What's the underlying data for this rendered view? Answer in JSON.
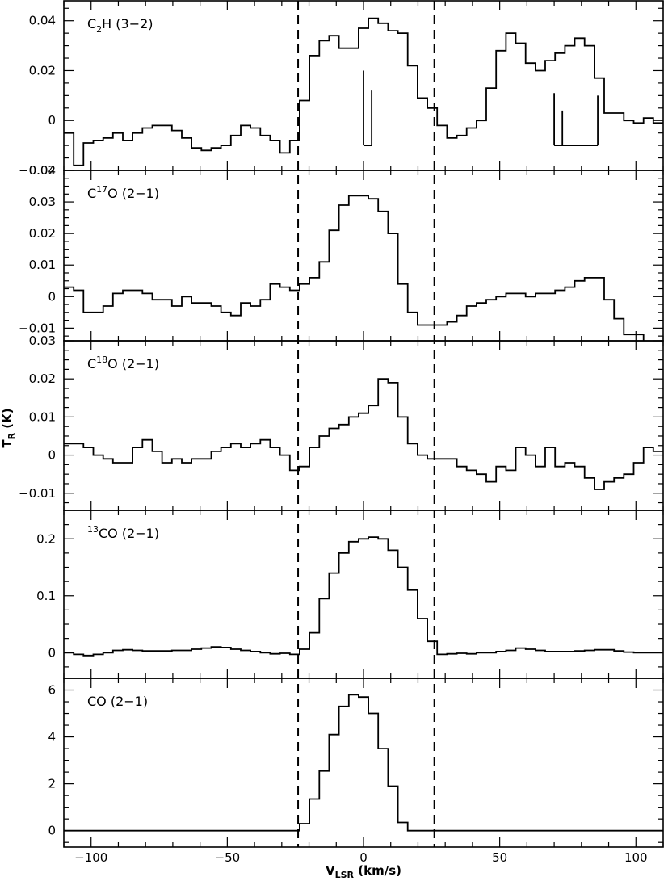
{
  "chart_data": {
    "type": "line",
    "shared_x": {
      "label_main": "V",
      "label_sub": "LSR",
      "label_rest": " (km/s)",
      "range": [
        -110,
        110
      ],
      "ticks": [
        -100,
        -50,
        0,
        50,
        100
      ],
      "tick_labels": [
        "−100",
        "−50",
        "0",
        "50",
        "100"
      ],
      "minor_step": 10
    },
    "y_axis_title": {
      "main": "T",
      "sub": "R",
      "rest": " (K)"
    },
    "dashed_lines_x": [
      -24,
      26
    ],
    "panels": [
      {
        "label": {
          "pre": "C",
          "sup": "",
          "sub": "2",
          "post": "H  (3−2)"
        },
        "ylim": [
          -0.02,
          0.048
        ],
        "yticks": [
          -0.02,
          0,
          0.02,
          0.04
        ],
        "ytick_labels": [
          "−0.02",
          "0",
          "0.02",
          "0.04"
        ],
        "minor_step": 0.005,
        "values": [
          -0.005,
          -0.018,
          -0.009,
          -0.008,
          -0.007,
          -0.005,
          -0.008,
          -0.005,
          -0.003,
          -0.002,
          -0.002,
          -0.004,
          -0.007,
          -0.011,
          -0.012,
          -0.011,
          -0.01,
          -0.006,
          -0.002,
          -0.003,
          -0.006,
          -0.008,
          -0.013,
          -0.008,
          0.008,
          0.026,
          0.032,
          0.034,
          0.029,
          0.029,
          0.037,
          0.041,
          0.039,
          0.036,
          0.035,
          0.022,
          0.009,
          0.005,
          -0.002,
          -0.007,
          -0.006,
          -0.003,
          0.0,
          0.013,
          0.028,
          0.035,
          0.031,
          0.023,
          0.02,
          0.024,
          0.027,
          0.03,
          0.033,
          0.03,
          0.017,
          0.003,
          0.003,
          0.0,
          -0.001,
          0.001,
          -0.001
        ]
      },
      {
        "label": {
          "pre": "C",
          "sup": "17",
          "sub": "",
          "post": "O  (2−1)"
        },
        "ylim": [
          -0.014,
          0.04
        ],
        "yticks": [
          -0.01,
          0,
          0.01,
          0.02,
          0.03,
          0.04
        ],
        "ytick_labels": [
          "−0.01",
          "0",
          "0.01",
          "0.02",
          "0.03",
          "0.04"
        ],
        "minor_step": 0.0025,
        "values": [
          0.003,
          0.002,
          -0.005,
          -0.005,
          -0.003,
          0.001,
          0.002,
          0.002,
          0.001,
          -0.001,
          -0.001,
          -0.003,
          0.0,
          -0.002,
          -0.002,
          -0.003,
          -0.005,
          -0.006,
          -0.002,
          -0.003,
          -0.001,
          0.004,
          0.003,
          0.002,
          0.004,
          0.006,
          0.011,
          0.021,
          0.029,
          0.032,
          0.032,
          0.031,
          0.027,
          0.02,
          0.004,
          -0.005,
          -0.009,
          -0.009,
          -0.009,
          -0.008,
          -0.006,
          -0.003,
          -0.002,
          -0.001,
          0.0,
          0.001,
          0.001,
          0.0,
          0.001,
          0.001,
          0.002,
          0.003,
          0.005,
          0.006,
          0.006,
          -0.001,
          -0.007,
          -0.012,
          -0.012,
          -0.015,
          -0.015
        ]
      },
      {
        "label": {
          "pre": "C",
          "sup": "18",
          "sub": "",
          "post": "O  (2−1)"
        },
        "ylim": [
          -0.0145,
          0.03
        ],
        "yticks": [
          -0.01,
          0,
          0.01,
          0.02,
          0.03
        ],
        "ytick_labels": [
          "−0.01",
          "0",
          "0.01",
          "0.02",
          "0.03"
        ],
        "minor_step": 0.0025,
        "values": [
          0.003,
          0.003,
          0.002,
          0.0,
          -0.001,
          -0.002,
          -0.002,
          0.002,
          0.004,
          0.001,
          -0.002,
          -0.001,
          -0.002,
          -0.001,
          -0.001,
          0.001,
          0.002,
          0.003,
          0.002,
          0.003,
          0.004,
          0.002,
          0.0,
          -0.004,
          -0.003,
          0.002,
          0.005,
          0.007,
          0.008,
          0.01,
          0.011,
          0.013,
          0.02,
          0.019,
          0.01,
          0.003,
          0.0,
          -0.001,
          -0.001,
          -0.001,
          -0.003,
          -0.004,
          -0.005,
          -0.007,
          -0.003,
          -0.004,
          0.002,
          0.0,
          -0.003,
          0.002,
          -0.003,
          -0.002,
          -0.003,
          -0.006,
          -0.009,
          -0.007,
          -0.006,
          -0.005,
          -0.002,
          0.002,
          0.001
        ]
      },
      {
        "label": {
          "pre": "",
          "sup": "13",
          "sub": "",
          "post": "CO  (2−1)"
        },
        "ylim": [
          -0.045,
          0.25
        ],
        "yticks": [
          0,
          0.1,
          0.2
        ],
        "ytick_labels": [
          "0",
          "0.1",
          "0.2"
        ],
        "minor_step": 0.025,
        "values": [
          0.0,
          -0.003,
          -0.005,
          -0.003,
          0.0,
          0.004,
          0.005,
          0.004,
          0.003,
          0.003,
          0.003,
          0.004,
          0.004,
          0.006,
          0.008,
          0.01,
          0.009,
          0.006,
          0.004,
          0.002,
          0.0,
          -0.002,
          -0.001,
          -0.003,
          0.006,
          0.035,
          0.095,
          0.14,
          0.175,
          0.195,
          0.2,
          0.203,
          0.2,
          0.18,
          0.15,
          0.11,
          0.06,
          0.02,
          -0.003,
          -0.002,
          -0.001,
          -0.002,
          0.0,
          0.0,
          0.002,
          0.004,
          0.008,
          0.006,
          0.004,
          0.002,
          0.002,
          0.002,
          0.003,
          0.004,
          0.005,
          0.005,
          0.003,
          0.001,
          0.0,
          0.0,
          0.0
        ]
      },
      {
        "label": {
          "pre": "",
          "sup": "",
          "sub": "",
          "post": "CO  (2−1)"
        },
        "ylim": [
          -0.7,
          6.5
        ],
        "yticks": [
          0,
          2,
          4,
          6
        ],
        "ytick_labels": [
          "0",
          "2",
          "4",
          "6"
        ],
        "minor_step": 0.5,
        "values": [
          0,
          0,
          0,
          0,
          0,
          0,
          0,
          0,
          0,
          0,
          0,
          0,
          0,
          0,
          0,
          0,
          0,
          0,
          0,
          0,
          0,
          0,
          0,
          0,
          0.3,
          1.35,
          2.55,
          4.1,
          5.3,
          5.8,
          5.7,
          5.0,
          3.5,
          1.9,
          0.35,
          0,
          0,
          0,
          0,
          0,
          0,
          0,
          0,
          0,
          0,
          0,
          0,
          0,
          0,
          0,
          0,
          0,
          0,
          0,
          0,
          0,
          0,
          0,
          0,
          0,
          0
        ]
      }
    ],
    "markers": {
      "panel": 0,
      "baseline_y": -0.01,
      "groups": [
        {
          "x": [
            0,
            3
          ],
          "top": [
            0.02,
            0.012
          ]
        },
        {
          "x": [
            70,
            73,
            86
          ],
          "top": [
            0.011,
            0.004,
            0.01
          ]
        }
      ]
    }
  }
}
